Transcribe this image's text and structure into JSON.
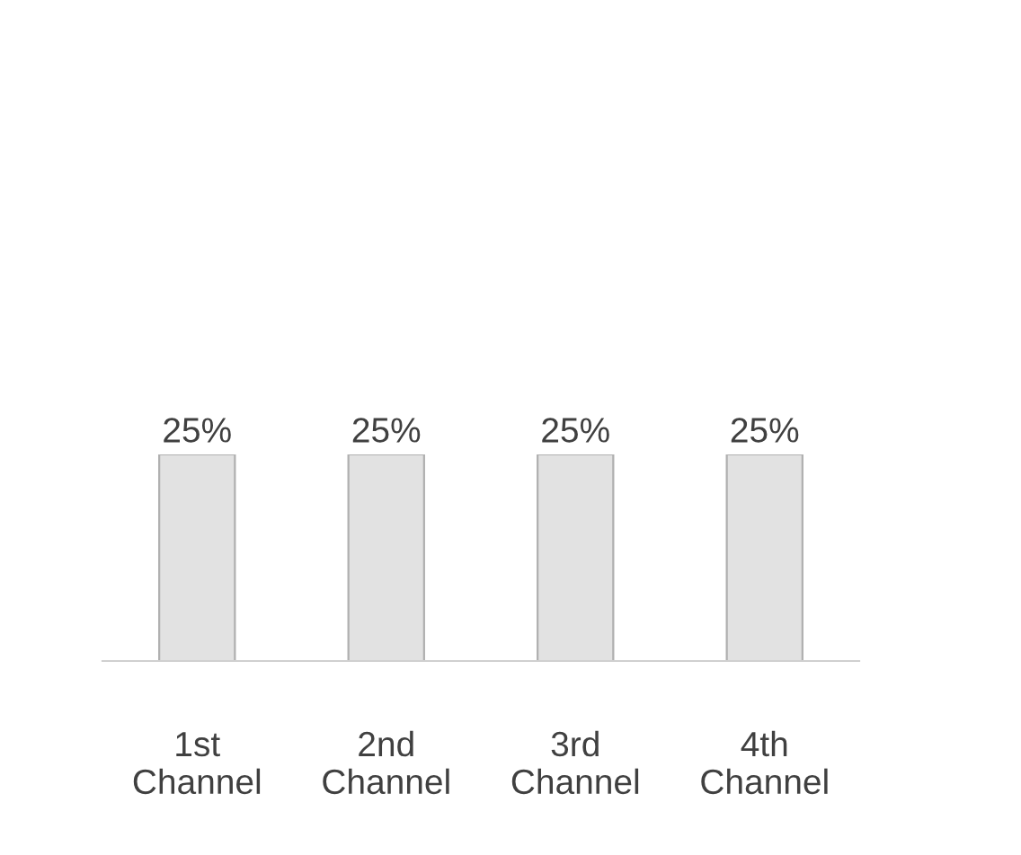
{
  "chart_data": {
    "type": "bar",
    "categories": [
      "1st\nChannel",
      "2nd\nChannel",
      "3rd\nChannel",
      "4th\nChannel"
    ],
    "values": [
      25,
      25,
      25,
      25
    ],
    "value_labels": [
      "25%",
      "25%",
      "25%",
      "25%"
    ],
    "color": "#e2e2e2",
    "grid": false,
    "legend": false
  }
}
